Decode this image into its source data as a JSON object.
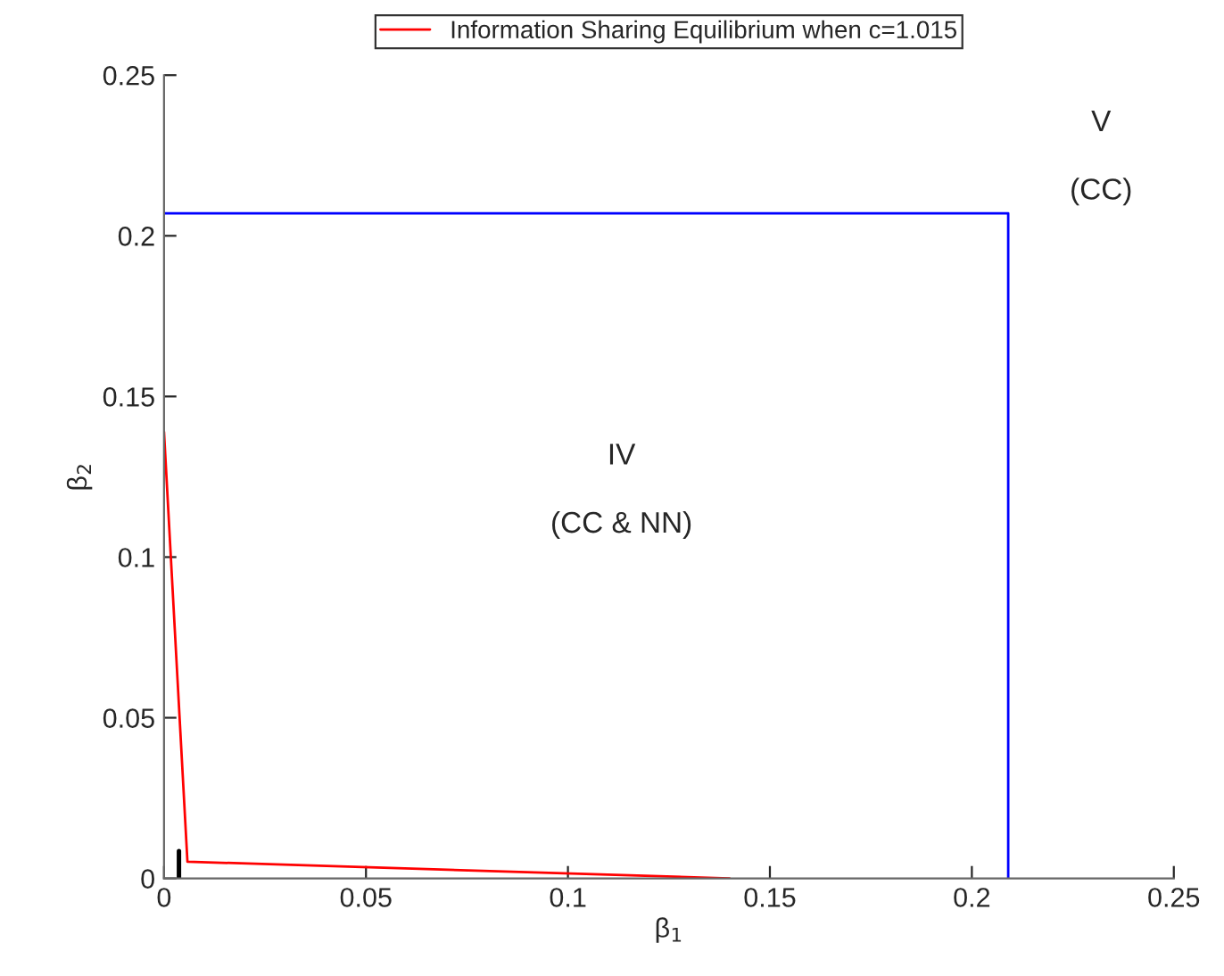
{
  "chart_data": {
    "type": "line",
    "xlabel": "β$_{1}$",
    "ylabel": "β$_{2}$",
    "xlim": [
      0,
      0.25
    ],
    "ylim": [
      0,
      0.25
    ],
    "xticks": [
      0,
      0.05,
      0.1,
      0.15,
      0.2,
      0.25
    ],
    "yticks": [
      0,
      0.05,
      0.1,
      0.15,
      0.2,
      0.25
    ],
    "series": [
      {
        "name": "Information Sharing Equilibrium when c=1.015",
        "color": "#ff0000",
        "x": [
          0,
          0.0058,
          0.14
        ],
        "values": [
          0.139,
          0.0052,
          0
        ]
      },
      {
        "color": "#0000ff",
        "x": [
          0.209,
          0.209,
          0
        ],
        "values": [
          0,
          0.207,
          0.207
        ]
      },
      {
        "color": "#000000",
        "x": [
          0.0037,
          0.0037
        ],
        "values": [
          0,
          0.0085
        ]
      }
    ],
    "annotations": [
      "IV",
      "(CC & NN)",
      "V",
      "(CC)"
    ],
    "legend": "top",
    "grid": false
  }
}
